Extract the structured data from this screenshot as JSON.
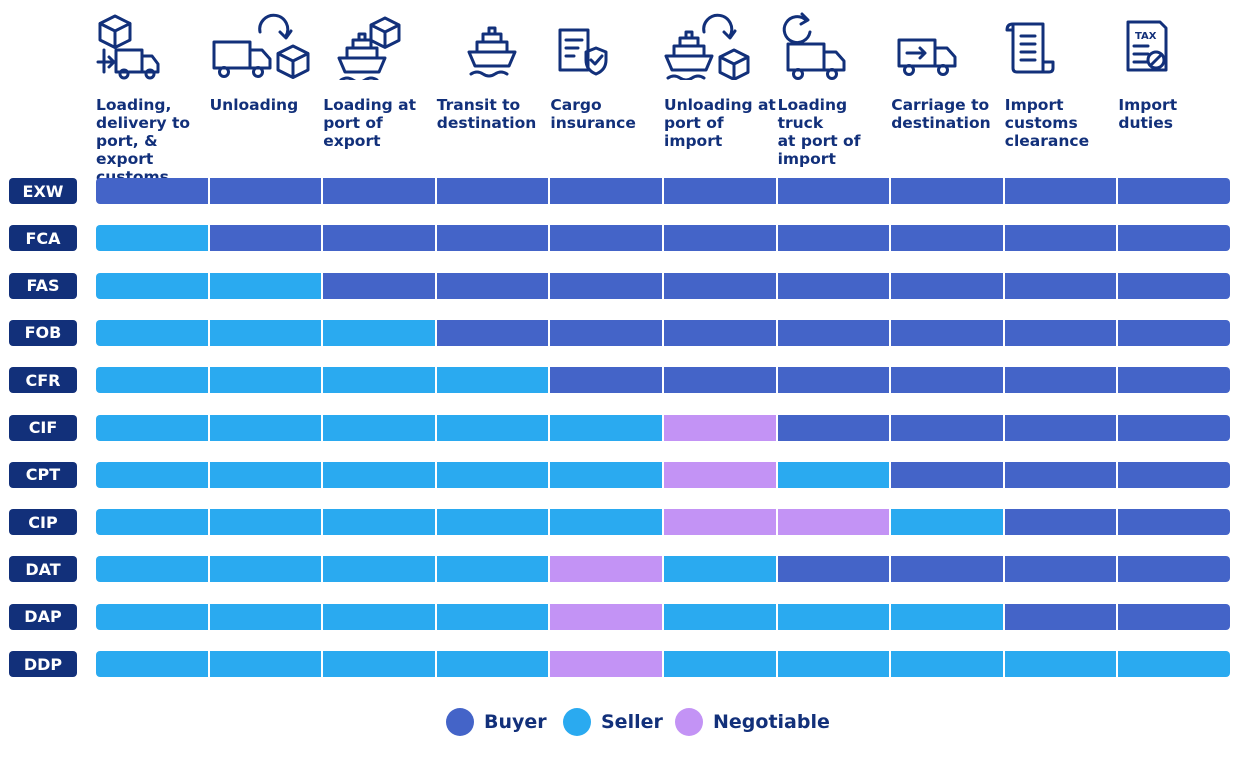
{
  "colors": {
    "buyer": "#4464c8",
    "seller": "#2aaaf0",
    "negotiable": "#c393f5",
    "text": "#12307a"
  },
  "legend": [
    {
      "key": "buyer",
      "label": "Buyer"
    },
    {
      "key": "seller",
      "label": "Seller"
    },
    {
      "key": "negotiable",
      "label": "Negotiable"
    }
  ],
  "chart_data": {
    "type": "table",
    "columns": [
      {
        "label": "Loading,\ndelivery to\nport, & export\ncustoms",
        "icon": "box-truck-icon"
      },
      {
        "label": "Unloading",
        "icon": "truck-unload-box-icon"
      },
      {
        "label": "Loading at\nport of export",
        "icon": "ship-load-box-icon"
      },
      {
        "label": "Transit to\ndestination",
        "icon": "ship-icon"
      },
      {
        "label": "Cargo\ninsurance",
        "icon": "shield-document-icon"
      },
      {
        "label": "Unloading at\nport of import",
        "icon": "ship-unload-box-icon"
      },
      {
        "label": "Loading truck\nat port of\nimport",
        "icon": "truck-reload-icon"
      },
      {
        "label": "Carriage to\ndestination",
        "icon": "truck-arrow-icon"
      },
      {
        "label": "Import\ncustoms\nclearance",
        "icon": "scroll-document-icon"
      },
      {
        "label": "Import\nduties",
        "icon": "tax-document-icon"
      }
    ],
    "rows": [
      {
        "term": "EXW",
        "values": [
          "buyer",
          "buyer",
          "buyer",
          "buyer",
          "buyer",
          "buyer",
          "buyer",
          "buyer",
          "buyer",
          "buyer"
        ]
      },
      {
        "term": "FCA",
        "values": [
          "seller",
          "buyer",
          "buyer",
          "buyer",
          "buyer",
          "buyer",
          "buyer",
          "buyer",
          "buyer",
          "buyer"
        ]
      },
      {
        "term": "FAS",
        "values": [
          "seller",
          "seller",
          "buyer",
          "buyer",
          "buyer",
          "buyer",
          "buyer",
          "buyer",
          "buyer",
          "buyer"
        ]
      },
      {
        "term": "FOB",
        "values": [
          "seller",
          "seller",
          "seller",
          "buyer",
          "buyer",
          "buyer",
          "buyer",
          "buyer",
          "buyer",
          "buyer"
        ]
      },
      {
        "term": "CFR",
        "values": [
          "seller",
          "seller",
          "seller",
          "seller",
          "buyer",
          "buyer",
          "buyer",
          "buyer",
          "buyer",
          "buyer"
        ]
      },
      {
        "term": "CIF",
        "values": [
          "seller",
          "seller",
          "seller",
          "seller",
          "seller",
          "negotiable",
          "buyer",
          "buyer",
          "buyer",
          "buyer"
        ]
      },
      {
        "term": "CPT",
        "values": [
          "seller",
          "seller",
          "seller",
          "seller",
          "seller",
          "negotiable",
          "seller",
          "buyer",
          "buyer",
          "buyer"
        ]
      },
      {
        "term": "CIP",
        "values": [
          "seller",
          "seller",
          "seller",
          "seller",
          "seller",
          "negotiable",
          "negotiable",
          "seller",
          "buyer",
          "buyer"
        ]
      },
      {
        "term": "DAT",
        "values": [
          "seller",
          "seller",
          "seller",
          "seller",
          "negotiable",
          "seller",
          "buyer",
          "buyer",
          "buyer",
          "buyer"
        ]
      },
      {
        "term": "DAP",
        "values": [
          "seller",
          "seller",
          "seller",
          "seller",
          "negotiable",
          "seller",
          "seller",
          "seller",
          "buyer",
          "buyer"
        ]
      },
      {
        "term": "DDP",
        "values": [
          "seller",
          "seller",
          "seller",
          "seller",
          "negotiable",
          "seller",
          "seller",
          "seller",
          "seller",
          "seller"
        ]
      }
    ],
    "icon_text": {
      "tax": "TAX"
    }
  }
}
